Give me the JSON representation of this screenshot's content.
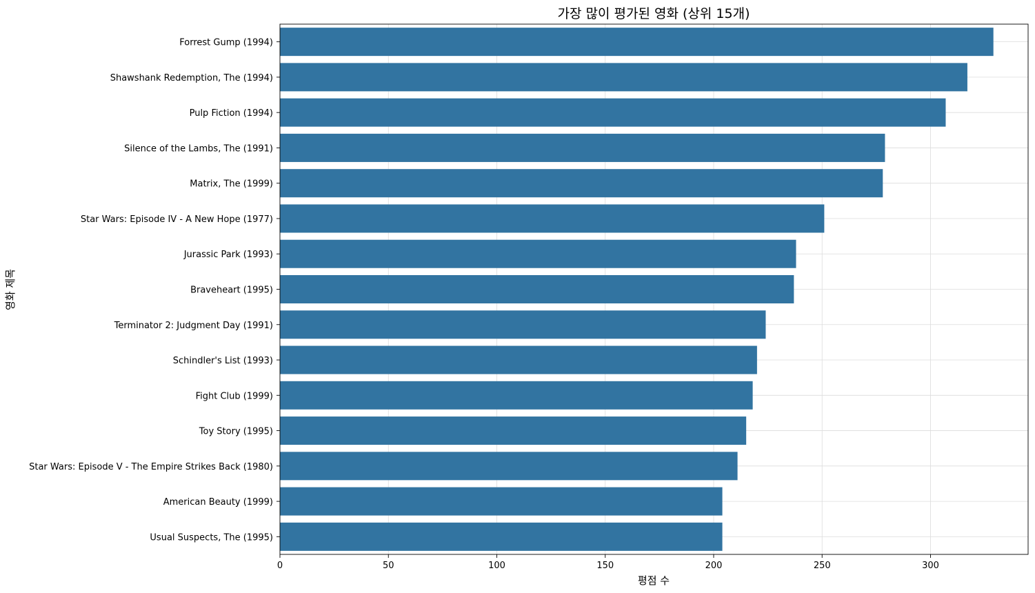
{
  "chart_data": {
    "type": "bar",
    "orientation": "horizontal",
    "title": "가장 많이 평가된 영화 (상위 15개)",
    "xlabel": "평점 수",
    "ylabel": "영화 제목",
    "xlim": [
      0,
      345
    ],
    "xticks": [
      0,
      50,
      100,
      150,
      200,
      250,
      300
    ],
    "grid": true,
    "bar_color": "#3274a1",
    "categories": [
      "Forrest Gump (1994)",
      "Shawshank Redemption, The (1994)",
      "Pulp Fiction (1994)",
      "Silence of the Lambs, The (1991)",
      "Matrix, The (1999)",
      "Star Wars: Episode IV - A New Hope (1977)",
      "Jurassic Park (1993)",
      "Braveheart (1995)",
      "Terminator 2: Judgment Day (1991)",
      "Schindler's List (1993)",
      "Fight Club (1999)",
      "Toy Story (1995)",
      "Star Wars: Episode V - The Empire Strikes Back (1980)",
      "American Beauty (1999)",
      "Usual Suspects, The (1995)"
    ],
    "values": [
      329,
      317,
      307,
      279,
      278,
      251,
      238,
      237,
      224,
      220,
      218,
      215,
      211,
      204,
      204
    ]
  }
}
